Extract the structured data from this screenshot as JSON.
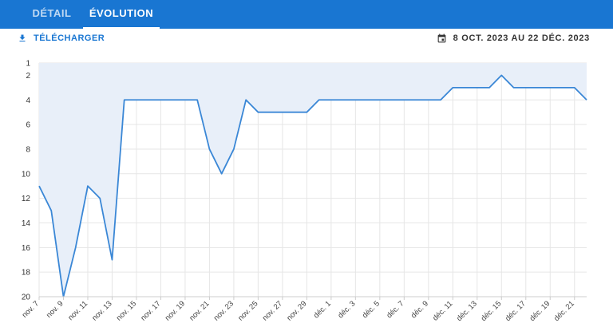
{
  "tabs": [
    {
      "label": "DÉTAIL",
      "active": false
    },
    {
      "label": "ÉVOLUTION",
      "active": true
    }
  ],
  "toolbar": {
    "download_label": "TÉLÉCHARGER",
    "download_icon": "download-icon",
    "date_range": "8 OCT. 2023 AU 22 DÉC. 2023",
    "date_icon": "calendar-icon"
  },
  "colors": {
    "primary": "#1976d2",
    "line": "#3a87d6",
    "fill": "#e8eff9"
  },
  "chart_data": {
    "type": "area",
    "title": "",
    "xlabel": "",
    "ylabel": "",
    "y_inverted": true,
    "ylim": [
      1,
      20
    ],
    "y_ticks": [
      1,
      2,
      4,
      6,
      8,
      10,
      12,
      14,
      16,
      18,
      20
    ],
    "grid": true,
    "x": [
      "nov. 7",
      "nov. 8",
      "nov. 9",
      "nov. 10",
      "nov. 11",
      "nov. 12",
      "nov. 13",
      "nov. 14",
      "nov. 15",
      "nov. 16",
      "nov. 17",
      "nov. 18",
      "nov. 19",
      "nov. 20",
      "nov. 21",
      "nov. 22",
      "nov. 23",
      "nov. 24",
      "nov. 25",
      "nov. 26",
      "nov. 27",
      "nov. 28",
      "nov. 29",
      "nov. 30",
      "déc. 1",
      "déc. 2",
      "déc. 3",
      "déc. 4",
      "déc. 5",
      "déc. 6",
      "déc. 7",
      "déc. 8",
      "déc. 9",
      "déc. 10",
      "déc. 11",
      "déc. 12",
      "déc. 13",
      "déc. 14",
      "déc. 15",
      "déc. 16",
      "déc. 17",
      "déc. 18",
      "déc. 19",
      "déc. 20",
      "déc. 21",
      "déc. 22"
    ],
    "x_tick_labels": [
      "nov. 7",
      "nov. 9",
      "nov. 11",
      "nov. 13",
      "nov. 15",
      "nov. 17",
      "nov. 19",
      "nov. 21",
      "nov. 23",
      "nov. 25",
      "nov. 27",
      "nov. 29",
      "déc. 1",
      "déc. 3",
      "déc. 5",
      "déc. 7",
      "déc. 9",
      "déc. 11",
      "déc. 13",
      "déc. 15",
      "déc. 17",
      "déc. 19",
      "déc. 21"
    ],
    "series": [
      {
        "values": [
          11,
          13,
          20,
          16,
          11,
          12,
          17,
          4,
          4,
          4,
          4,
          4,
          4,
          4,
          8,
          10,
          8,
          4,
          5,
          5,
          5,
          5,
          5,
          4,
          4,
          4,
          4,
          4,
          4,
          4,
          4,
          4,
          4,
          4,
          3,
          3,
          3,
          3,
          2,
          3,
          3,
          3,
          3,
          3,
          3,
          4
        ]
      }
    ]
  }
}
